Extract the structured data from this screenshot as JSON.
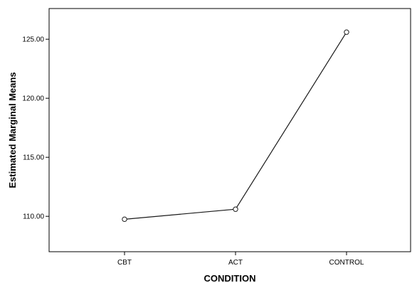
{
  "chart_data": {
    "type": "line",
    "title": "",
    "xlabel": "CONDITION",
    "ylabel": "Estimated Marginal Means",
    "categories": [
      "CBT",
      "ACT",
      "CONTROL"
    ],
    "series": [
      {
        "values": [
          109.75,
          110.6,
          125.6
        ]
      }
    ],
    "y_ticks": [
      110,
      115,
      120,
      125
    ],
    "y_tick_labels": [
      "110.00",
      "115.00",
      "120.00",
      "125.00"
    ],
    "ylim": [
      107,
      127.6
    ],
    "grid": false,
    "marker": "open-circle",
    "colors": {
      "line": "#1a1a1a",
      "axis": "#000000",
      "background": "#ffffff"
    }
  }
}
